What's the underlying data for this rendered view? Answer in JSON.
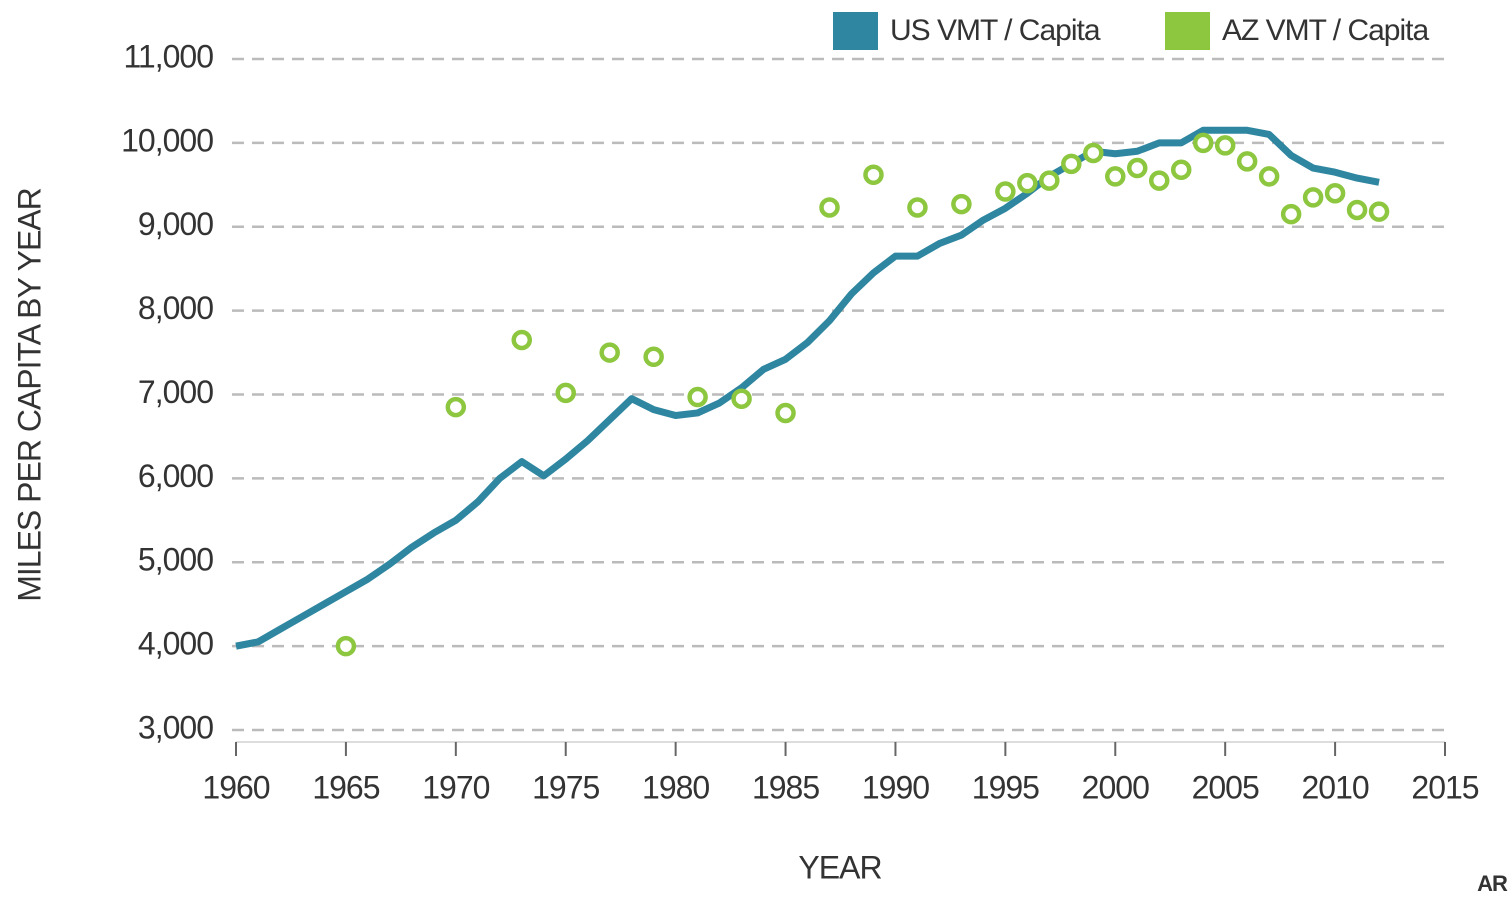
{
  "chart_data": {
    "type": "line",
    "xlabel": "YEAR",
    "ylabel": "MILES PER CAPITA BY YEAR",
    "footer": "AR",
    "x": [
      1960,
      1961,
      1962,
      1963,
      1964,
      1965,
      1966,
      1967,
      1968,
      1969,
      1970,
      1971,
      1972,
      1973,
      1974,
      1975,
      1976,
      1977,
      1978,
      1979,
      1980,
      1981,
      1982,
      1983,
      1984,
      1985,
      1986,
      1987,
      1988,
      1989,
      1990,
      1991,
      1992,
      1993,
      1994,
      1995,
      1996,
      1997,
      1998,
      1999,
      2000,
      2001,
      2002,
      2003,
      2004,
      2005,
      2006,
      2007,
      2008,
      2009,
      2010,
      2011,
      2012
    ],
    "series": [
      {
        "name": "US VMT / Capita",
        "color": "#2e86a0",
        "mode": "line",
        "values": [
          4000,
          4050,
          4200,
          4350,
          4500,
          4650,
          4800,
          4980,
          5180,
          5350,
          5500,
          5720,
          6000,
          6200,
          6030,
          6230,
          6450,
          6700,
          6950,
          6820,
          6750,
          6780,
          6900,
          7080,
          7300,
          7420,
          7620,
          7880,
          8200,
          8450,
          8650,
          8650,
          8800,
          8900,
          9080,
          9220,
          9400,
          9600,
          9750,
          9900,
          9870,
          9900,
          10000,
          10000,
          10150,
          10150,
          10150,
          10100,
          9850,
          9700,
          9650,
          9580,
          9530
        ]
      },
      {
        "name": "AZ VMT / Capita",
        "color": "#8dc63f",
        "mode": "markers",
        "values": [
          null,
          null,
          null,
          null,
          null,
          4000,
          null,
          null,
          null,
          null,
          6850,
          null,
          null,
          7650,
          null,
          7020,
          null,
          7500,
          null,
          7450,
          null,
          6970,
          null,
          6950,
          null,
          6780,
          null,
          9230,
          null,
          9620,
          null,
          9230,
          null,
          9270,
          null,
          9420,
          9520,
          9550,
          9750,
          9880,
          9600,
          9700,
          9550,
          9680,
          10000,
          9970,
          9780,
          9600,
          9150,
          9350,
          9400,
          9200,
          9180
        ]
      }
    ],
    "xlim": [
      1960,
      2015
    ],
    "xticks": [
      1960,
      1965,
      1970,
      1975,
      1980,
      1985,
      1990,
      1995,
      2000,
      2005,
      2010,
      2015
    ],
    "ylim": [
      3000,
      11000
    ],
    "yticks": [
      {
        "value": 3000,
        "label": "3,000"
      },
      {
        "value": 4000,
        "label": "4,000"
      },
      {
        "value": 5000,
        "label": "5,000"
      },
      {
        "value": 6000,
        "label": "6,000"
      },
      {
        "value": 7000,
        "label": "7,000"
      },
      {
        "value": 8000,
        "label": "8,000"
      },
      {
        "value": 9000,
        "label": "9,000"
      },
      {
        "value": 10000,
        "label": "10,000"
      },
      {
        "value": 11000,
        "label": "11,000"
      }
    ],
    "grid": true,
    "legend": "top-right"
  }
}
